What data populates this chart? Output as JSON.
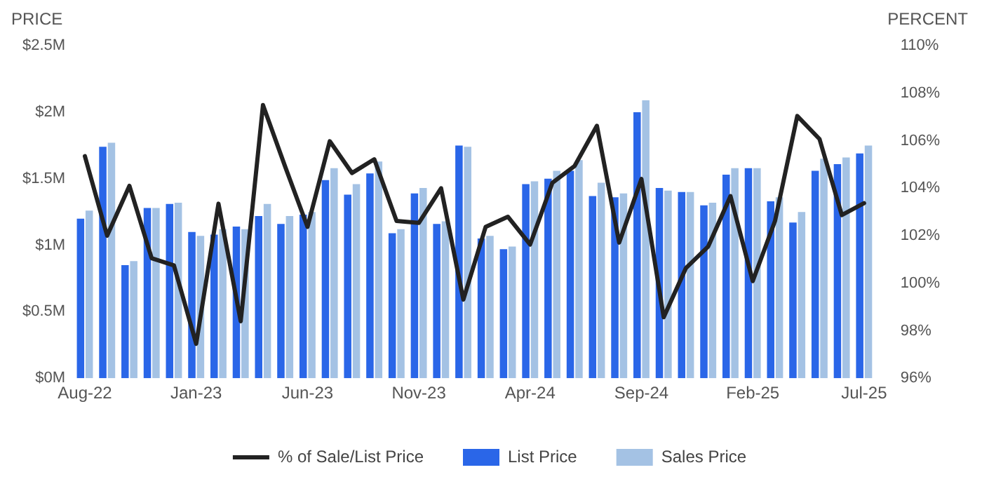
{
  "chart_data": {
    "type": "bar",
    "ylabel": "PRICE",
    "y2label": "PERCENT",
    "categories": [
      "Aug-22",
      null,
      null,
      null,
      null,
      "Jan-23",
      null,
      null,
      null,
      null,
      "Jun-23",
      null,
      null,
      null,
      null,
      "Nov-23",
      null,
      null,
      null,
      null,
      "Apr-24",
      null,
      null,
      null,
      null,
      "Sep-24",
      null,
      null,
      null,
      null,
      "Feb-25",
      null,
      null,
      null,
      null,
      "Jul-25"
    ],
    "series": [
      {
        "name": "% of Sale/List Price",
        "type": "line",
        "axis": "y2",
        "color": "#222222",
        "values": [
          105.35,
          102.0,
          104.1,
          101.05,
          100.75,
          97.45,
          103.35,
          98.4,
          107.5,
          104.9,
          102.37,
          105.98,
          104.64,
          105.22,
          102.62,
          102.54,
          104.0,
          99.31,
          102.37,
          102.8,
          101.63,
          104.23,
          104.94,
          106.63,
          101.71,
          104.39,
          98.57,
          100.64,
          101.55,
          103.67,
          100.09,
          102.62,
          107.04,
          106.07,
          102.87,
          103.37
        ]
      },
      {
        "name": "List Price",
        "color": "#2a66e8",
        "values": [
          1.2,
          1.74,
          0.85,
          1.28,
          1.31,
          1.1,
          1.08,
          1.14,
          1.22,
          1.16,
          1.23,
          1.49,
          1.38,
          1.54,
          1.09,
          1.39,
          1.16,
          1.75,
          1.05,
          0.97,
          1.46,
          1.5,
          1.56,
          1.37,
          1.36,
          2.0,
          1.43,
          1.4,
          1.3,
          1.53,
          1.58,
          1.33,
          1.17,
          1.56,
          1.61,
          1.69
        ]
      },
      {
        "name": "Sales Price",
        "color": "#a4c2e4",
        "values": [
          1.26,
          1.77,
          0.88,
          1.28,
          1.32,
          1.07,
          1.12,
          1.12,
          1.31,
          1.22,
          1.25,
          1.58,
          1.46,
          1.63,
          1.12,
          1.43,
          1.18,
          1.74,
          1.07,
          0.99,
          1.48,
          1.56,
          1.64,
          1.47,
          1.39,
          2.09,
          1.41,
          1.4,
          1.32,
          1.58,
          1.58,
          1.36,
          1.25,
          1.65,
          1.66,
          1.75
        ]
      }
    ],
    "ylim": [
      0,
      2.5
    ],
    "yticks": [
      {
        "value": 0,
        "label": "$0M"
      },
      {
        "value": 0.5,
        "label": "$0.5M"
      },
      {
        "value": 1,
        "label": "$1M"
      },
      {
        "value": 1.5,
        "label": "$1.5M"
      },
      {
        "value": 2,
        "label": "$2M"
      },
      {
        "value": 2.5,
        "label": "$2.5M"
      }
    ],
    "y2lim": [
      96,
      110
    ],
    "y2ticks": [
      {
        "value": 96,
        "label": "96%"
      },
      {
        "value": 98,
        "label": "98%"
      },
      {
        "value": 100,
        "label": "100%"
      },
      {
        "value": 102,
        "label": "102%"
      },
      {
        "value": 104,
        "label": "104%"
      },
      {
        "value": 106,
        "label": "106%"
      },
      {
        "value": 108,
        "label": "108%"
      },
      {
        "value": 110,
        "label": "110%"
      }
    ],
    "legend": "bottom"
  }
}
